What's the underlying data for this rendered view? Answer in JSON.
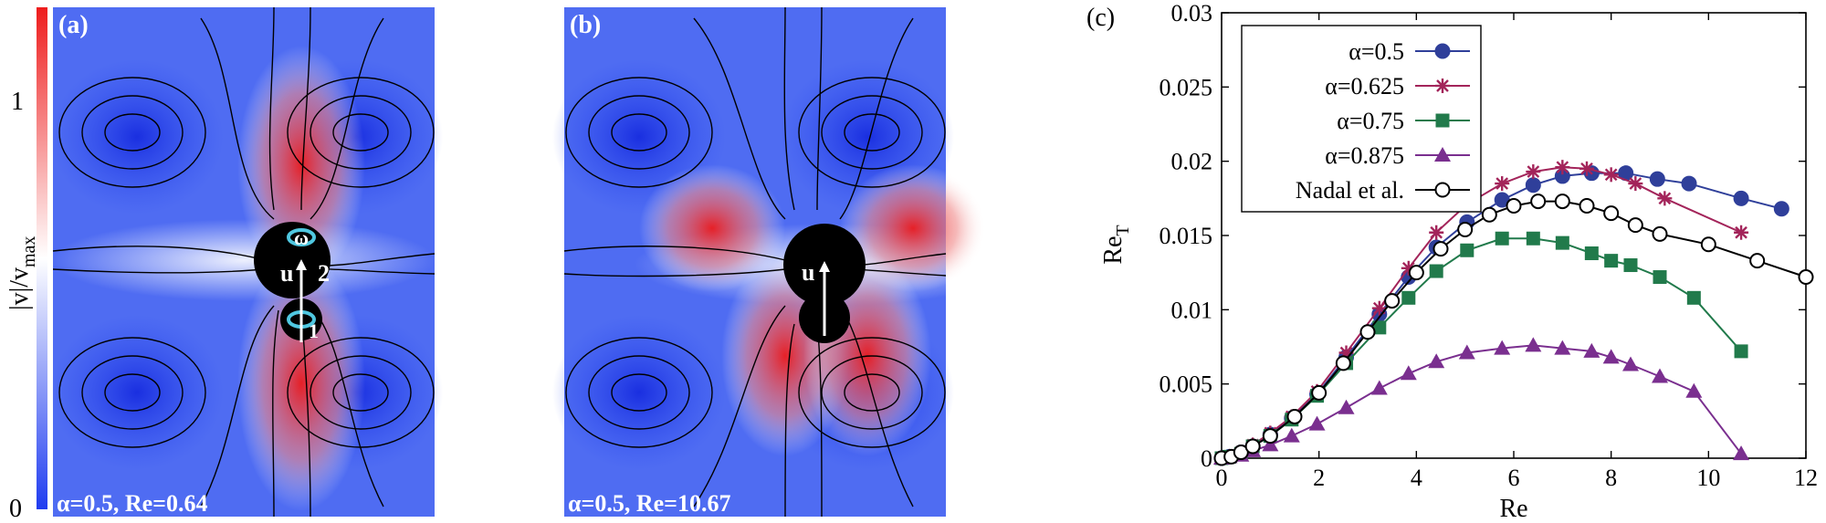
{
  "colorbar": {
    "label_main": "|v|/v",
    "label_sub": "max",
    "tick_top": "1",
    "tick_bottom": "0",
    "colors": {
      "low": "#1f3cf0",
      "mid": "#ffffff",
      "high": "#ee1c1c"
    }
  },
  "panel_a": {
    "letter": "(a)",
    "caption": "α=0.5, Re=0.64",
    "omega": "ω",
    "u": "u",
    "num2": "2",
    "num1": "1",
    "accent": "#4fc7e0"
  },
  "panel_b": {
    "letter": "(b)",
    "caption": "α=0.5, Re=10.67",
    "u": "u"
  },
  "panel_c": {
    "letter": "(c)"
  },
  "chart_data": {
    "type": "line",
    "xlabel": "Re",
    "ylabel_main": "Re",
    "ylabel_sub": "T",
    "xlim": [
      0,
      12
    ],
    "ylim": [
      0,
      0.03
    ],
    "xticks": [
      0,
      2,
      4,
      6,
      8,
      10,
      12
    ],
    "xtick_labels": [
      "0",
      "2",
      "4",
      "6",
      "8",
      "10",
      "12"
    ],
    "yticks": [
      0,
      0.005,
      0.01,
      0.015,
      0.02,
      0.025,
      0.03
    ],
    "ytick_labels": [
      "0",
      "0.005",
      "0.01",
      "0.015",
      "0.02",
      "0.025",
      "0.03"
    ],
    "legend_position": "top-left",
    "series": [
      {
        "name": "α=0.5",
        "color": "#2f3f9a",
        "marker": "circle-filled",
        "x": [
          0,
          0.16,
          0.4,
          0.64,
          1.0,
          1.44,
          1.96,
          2.56,
          3.24,
          3.84,
          4.41,
          5.04,
          5.76,
          6.4,
          7.0,
          7.6,
          8.3,
          8.95,
          9.6,
          10.67,
          11.5
        ],
        "y": [
          0,
          0.0001,
          0.0004,
          0.0008,
          0.0016,
          0.0027,
          0.0043,
          0.0068,
          0.0097,
          0.0122,
          0.0142,
          0.0159,
          0.0174,
          0.0184,
          0.019,
          0.0192,
          0.0192,
          0.0188,
          0.0185,
          0.0175,
          0.0168
        ]
      },
      {
        "name": "α=0.625",
        "color": "#a3245a",
        "marker": "asterisk",
        "x": [
          0,
          0.16,
          0.4,
          0.64,
          1.0,
          1.44,
          1.96,
          2.56,
          3.24,
          3.84,
          4.41,
          5.04,
          5.76,
          6.4,
          7.0,
          7.5,
          8.0,
          8.5,
          9.1,
          10.67
        ],
        "y": [
          0,
          0.0001,
          0.0004,
          0.0009,
          0.0017,
          0.0028,
          0.0045,
          0.0071,
          0.0101,
          0.0128,
          0.0152,
          0.0171,
          0.0185,
          0.0193,
          0.0196,
          0.0195,
          0.0191,
          0.0185,
          0.0175,
          0.0152
        ]
      },
      {
        "name": "α=0.75",
        "color": "#217a4b",
        "marker": "square-filled",
        "x": [
          0,
          0.16,
          0.4,
          0.64,
          1.0,
          1.44,
          1.96,
          2.56,
          3.24,
          3.84,
          4.41,
          5.04,
          5.76,
          6.4,
          7.0,
          7.6,
          8.0,
          8.4,
          9.0,
          9.7,
          10.67
        ],
        "y": [
          0,
          0.0001,
          0.0003,
          0.0008,
          0.0015,
          0.0026,
          0.0042,
          0.0064,
          0.0088,
          0.0108,
          0.0126,
          0.014,
          0.0148,
          0.0148,
          0.0145,
          0.0138,
          0.0133,
          0.013,
          0.0122,
          0.0108,
          0.0072
        ]
      },
      {
        "name": "α=0.875",
        "color": "#7a2f8f",
        "marker": "triangle-filled",
        "x": [
          0,
          0.16,
          0.4,
          0.64,
          1.0,
          1.44,
          1.96,
          2.56,
          3.24,
          3.84,
          4.41,
          5.04,
          5.76,
          6.4,
          7.0,
          7.6,
          8.0,
          8.4,
          9.0,
          9.7,
          10.67
        ],
        "y": [
          0,
          0.0001,
          0.0002,
          0.0005,
          0.0009,
          0.0015,
          0.0023,
          0.0034,
          0.0047,
          0.0057,
          0.0065,
          0.0071,
          0.0074,
          0.0076,
          0.0074,
          0.0072,
          0.0068,
          0.0063,
          0.0055,
          0.0045,
          0.0003
        ]
      },
      {
        "name": "Nadal et al.",
        "color": "#000000",
        "marker": "circle-open",
        "x": [
          0,
          0.2,
          0.4,
          0.64,
          1.0,
          1.5,
          2.0,
          2.5,
          3.0,
          3.5,
          4.0,
          4.5,
          5.0,
          5.5,
          6.0,
          6.5,
          7.0,
          7.5,
          8.0,
          8.5,
          9.0,
          10.0,
          11.0,
          12.0
        ],
        "y": [
          0,
          0.0001,
          0.0004,
          0.0008,
          0.0015,
          0.0028,
          0.0044,
          0.0064,
          0.0085,
          0.0106,
          0.0125,
          0.0141,
          0.0154,
          0.0164,
          0.017,
          0.0173,
          0.0173,
          0.017,
          0.0165,
          0.0157,
          0.0151,
          0.0144,
          0.0133,
          0.0122
        ]
      }
    ]
  }
}
